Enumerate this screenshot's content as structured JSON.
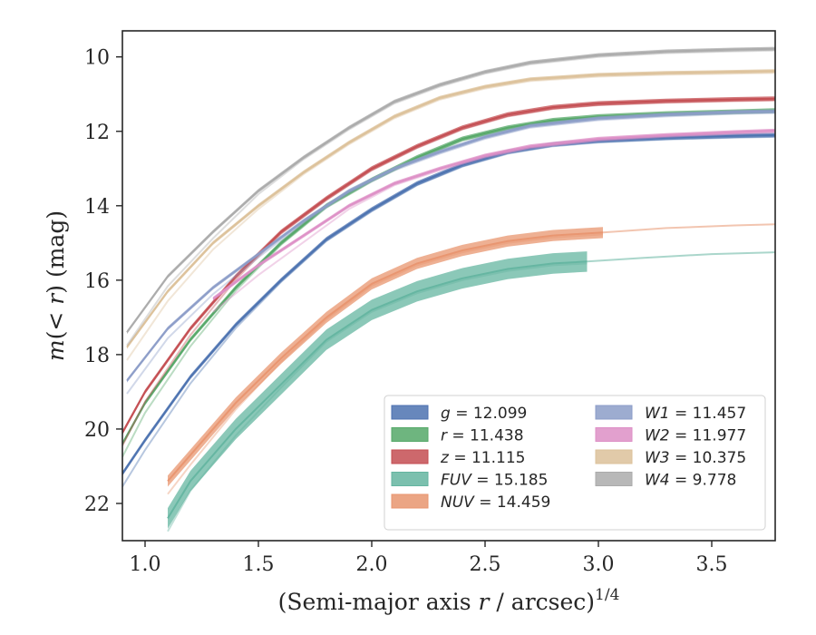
{
  "chart_data": {
    "type": "line",
    "xlabel": "(Semi-major axis r / arcsec)^1/4",
    "xlabel_parts": {
      "pre": "(Semi-major axis ",
      "var": "r",
      "post": " / arcsec)",
      "sup": "1/4"
    },
    "ylabel": "m(< r) (mag)",
    "ylabel_parts": {
      "a": "m",
      "b": "(< ",
      "c": "r",
      "d": ") (mag)"
    },
    "xlim": [
      0.9,
      3.78
    ],
    "ylim": [
      23.0,
      9.3
    ],
    "y_inverted": true,
    "xticks": [
      1.0,
      1.5,
      2.0,
      2.5,
      3.0,
      3.5
    ],
    "xtick_labels": [
      "1.0",
      "1.5",
      "2.0",
      "2.5",
      "3.0",
      "3.5"
    ],
    "yticks": [
      10,
      12,
      14,
      16,
      18,
      20,
      22
    ],
    "ytick_labels": [
      "10",
      "12",
      "14",
      "16",
      "18",
      "20",
      "22"
    ],
    "grid": false,
    "legend_position": "lower-right",
    "series": [
      {
        "name": "g = 12.099",
        "var": "g",
        "val": "12.099",
        "color": "#4c72b0",
        "x": [
          0.9,
          1.0,
          1.2,
          1.4,
          1.6,
          1.8,
          2.0,
          2.2,
          2.4,
          2.6,
          2.8,
          3.0,
          3.3,
          3.6,
          3.78
        ],
        "y": [
          21.2,
          20.3,
          18.6,
          17.2,
          16.0,
          14.9,
          14.1,
          13.4,
          12.9,
          12.55,
          12.35,
          12.25,
          12.17,
          12.12,
          12.1
        ],
        "band": 0.12
      },
      {
        "name": "r = 11.438",
        "var": "r",
        "val": "11.438",
        "color": "#55a868",
        "x": [
          0.9,
          1.0,
          1.2,
          1.4,
          1.6,
          1.8,
          2.0,
          2.2,
          2.4,
          2.6,
          2.8,
          3.0,
          3.3,
          3.6,
          3.78
        ],
        "y": [
          20.4,
          19.3,
          17.6,
          16.2,
          15.0,
          14.0,
          13.3,
          12.7,
          12.2,
          11.9,
          11.7,
          11.6,
          11.52,
          11.47,
          11.44
        ],
        "band": 0.12
      },
      {
        "name": "z = 11.115",
        "var": "z",
        "val": "11.115",
        "color": "#c44e52",
        "x": [
          0.9,
          1.0,
          1.2,
          1.4,
          1.6,
          1.8,
          2.0,
          2.2,
          2.4,
          2.6,
          2.8,
          3.0,
          3.3,
          3.6,
          3.78
        ],
        "y": [
          20.1,
          19.0,
          17.3,
          15.9,
          14.7,
          13.8,
          13.0,
          12.4,
          11.9,
          11.55,
          11.35,
          11.25,
          11.18,
          11.14,
          11.12
        ],
        "band": 0.12
      },
      {
        "name": "FUV = 15.185",
        "var": "FUV",
        "val": "15.185",
        "color": "#64b5a0",
        "x": [
          1.1,
          1.2,
          1.4,
          1.6,
          1.8,
          2.0,
          2.2,
          2.4,
          2.6,
          2.8,
          2.95
        ],
        "y": [
          22.4,
          21.4,
          20.0,
          18.8,
          17.6,
          16.8,
          16.3,
          15.95,
          15.7,
          15.55,
          15.5
        ],
        "band": 0.55,
        "extend_x": [
          2.95,
          3.2,
          3.5,
          3.78
        ],
        "extend_y": [
          15.5,
          15.4,
          15.3,
          15.25
        ]
      },
      {
        "name": "NUV = 14.459",
        "var": "NUV",
        "val": "14.459",
        "color": "#e8956f",
        "x": [
          1.1,
          1.2,
          1.4,
          1.6,
          1.8,
          2.0,
          2.2,
          2.4,
          2.6,
          2.8,
          3.02
        ],
        "y": [
          21.4,
          20.7,
          19.3,
          18.1,
          17.0,
          16.1,
          15.55,
          15.2,
          14.95,
          14.8,
          14.72
        ],
        "band": 0.3,
        "extend_x": [
          3.02,
          3.3,
          3.6,
          3.78
        ],
        "extend_y": [
          14.72,
          14.6,
          14.53,
          14.5
        ]
      },
      {
        "name": "W1 = 11.457",
        "var": "W1",
        "val": "11.457",
        "color": "#8c9dc8",
        "x": [
          0.92,
          1.1,
          1.3,
          1.5,
          1.7,
          1.9,
          2.1,
          2.3,
          2.5,
          2.7,
          3.0,
          3.3,
          3.6,
          3.78
        ],
        "y": [
          18.7,
          17.3,
          16.2,
          15.3,
          14.4,
          13.6,
          13.0,
          12.55,
          12.15,
          11.85,
          11.65,
          11.55,
          11.48,
          11.46
        ],
        "band": 0.1
      },
      {
        "name": "W2 = 11.977",
        "var": "W2",
        "val": "11.977",
        "color": "#dd8fc6",
        "x": [
          1.3,
          1.5,
          1.7,
          1.9,
          2.1,
          2.3,
          2.5,
          2.7,
          3.0,
          3.3,
          3.6,
          3.78
        ],
        "y": [
          16.5,
          15.6,
          14.8,
          14.0,
          13.4,
          13.0,
          12.65,
          12.4,
          12.2,
          12.1,
          12.02,
          11.98
        ],
        "band": 0.1
      },
      {
        "name": "W3 = 10.375",
        "var": "W3",
        "val": "10.375",
        "color": "#dcc19a",
        "x": [
          0.92,
          1.1,
          1.3,
          1.5,
          1.7,
          1.9,
          2.1,
          2.3,
          2.5,
          2.7,
          3.0,
          3.3,
          3.5,
          3.78
        ],
        "y": [
          17.8,
          16.3,
          15.0,
          14.0,
          13.1,
          12.3,
          11.6,
          11.1,
          10.8,
          10.6,
          10.48,
          10.43,
          10.41,
          10.38
        ],
        "band": 0.1
      },
      {
        "name": "W4 = 9.778",
        "var": "W4",
        "val": "9.778",
        "color": "#ababab",
        "x": [
          0.92,
          1.1,
          1.3,
          1.5,
          1.7,
          1.9,
          2.1,
          2.3,
          2.5,
          2.7,
          3.0,
          3.3,
          3.6,
          3.78
        ],
        "y": [
          17.4,
          15.9,
          14.7,
          13.6,
          12.7,
          11.9,
          11.2,
          10.75,
          10.4,
          10.15,
          9.95,
          9.85,
          9.8,
          9.78
        ],
        "band": 0.1
      }
    ]
  }
}
